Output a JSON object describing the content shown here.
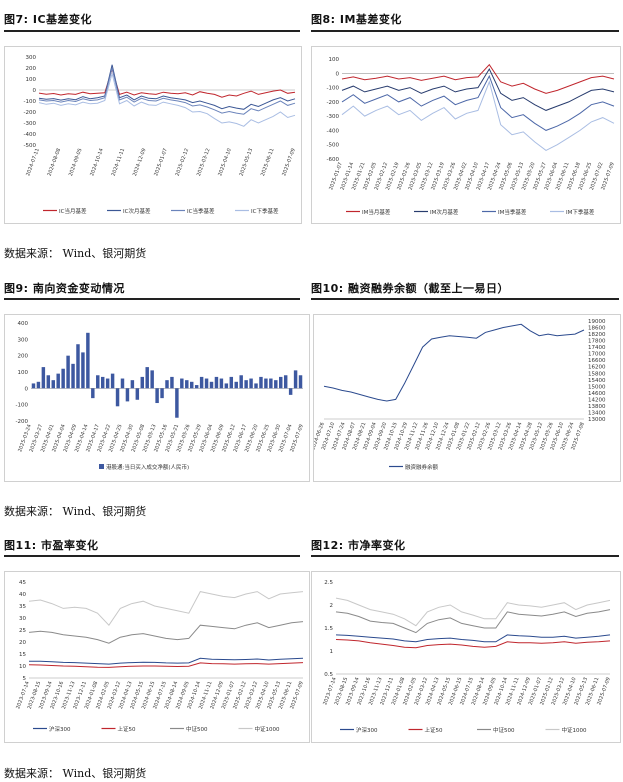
{
  "sources": [
    "数据来源： Wind、银河期货",
    "数据来源： Wind、银河期货",
    "数据来源： Wind、银河期货"
  ],
  "figures": [
    {
      "id": "fig7",
      "title": "图7: IC基差变化"
    },
    {
      "id": "fig8",
      "title": "图8: IM基差变化"
    },
    {
      "id": "fig9",
      "title": "图9: 南向资金变动情况"
    },
    {
      "id": "fig10",
      "title": "图10: 融资融券余额（截至上一易日）"
    },
    {
      "id": "fig11",
      "title": "图11: 市盈率变化"
    },
    {
      "id": "fig12",
      "title": "图12: 市净率变化"
    }
  ],
  "chart_data": [
    {
      "id": "fig7",
      "type": "line",
      "ylim": [
        -500,
        300
      ],
      "yticks": [
        300,
        200,
        100,
        0,
        -100,
        -200,
        -300,
        -400,
        -500
      ],
      "xticks": [
        "2024-07-11",
        "2024-08-08",
        "2024-09-05",
        "2024-10-14",
        "2024-11-11",
        "2024-12-09",
        "2025-01-07",
        "2025-02-12",
        "2025-03-12",
        "2025-04-10",
        "2025-05-13",
        "2025-06-11",
        "2025-07-09"
      ],
      "series": [
        {
          "name": "IC当月基差",
          "color": "#c0262d",
          "values": [
            -28,
            -38,
            -32,
            -45,
            -35,
            -40,
            -20,
            -35,
            -30,
            -25,
            190,
            -40,
            -20,
            -45,
            -25,
            -35,
            -40,
            -20,
            -30,
            -35,
            -25,
            -45,
            -15,
            -30,
            -40,
            -65,
            -45,
            -55,
            -30,
            -10,
            -40,
            -25,
            -10,
            0,
            -30,
            -20
          ]
        },
        {
          "name": "IC次月基差",
          "color": "#3b5795",
          "values": [
            -75,
            -85,
            -78,
            -92,
            -80,
            -88,
            -60,
            -80,
            -70,
            -55,
            230,
            -70,
            -45,
            -90,
            -55,
            -75,
            -80,
            -55,
            -70,
            -80,
            -90,
            -115,
            -100,
            -120,
            -140,
            -170,
            -150,
            -165,
            -175,
            -130,
            -150,
            -120,
            -90,
            -70,
            -100,
            -80
          ]
        },
        {
          "name": "IC当季基差",
          "color": "#6b84bb",
          "values": [
            -90,
            -100,
            -95,
            -110,
            -95,
            -105,
            -80,
            -95,
            -90,
            -70,
            200,
            -90,
            -65,
            -110,
            -75,
            -95,
            -100,
            -75,
            -90,
            -100,
            -115,
            -145,
            -135,
            -155,
            -180,
            -210,
            -195,
            -210,
            -220,
            -170,
            -190,
            -160,
            -130,
            -100,
            -140,
            -120
          ]
        },
        {
          "name": "IC下季基差",
          "color": "#a9bde3",
          "values": [
            -115,
            -130,
            -120,
            -140,
            -125,
            -135,
            -110,
            -125,
            -120,
            -95,
            150,
            -125,
            -95,
            -145,
            -110,
            -135,
            -140,
            -110,
            -125,
            -140,
            -160,
            -200,
            -195,
            -215,
            -260,
            -300,
            -290,
            -305,
            -330,
            -270,
            -300,
            -270,
            -240,
            -200,
            -250,
            -230
          ]
        }
      ]
    },
    {
      "id": "fig8",
      "type": "line",
      "ylim": [
        -600,
        100
      ],
      "yticks": [
        100,
        0,
        -100,
        -200,
        -300,
        -400,
        -500,
        -600
      ],
      "xticks": [
        "2025-01-07",
        "2025-01-14",
        "2025-01-21",
        "2025-02-05",
        "2025-02-12",
        "2025-02-19",
        "2025-02-26",
        "2025-03-05",
        "2025-03-12",
        "2025-03-19",
        "2025-03-26",
        "2025-04-02",
        "2025-04-10",
        "2025-04-17",
        "2025-04-24",
        "2025-05-06",
        "2025-05-13",
        "2025-05-20",
        "2025-05-27",
        "2025-06-04",
        "2025-06-11",
        "2025-06-18",
        "2025-06-25",
        "2025-07-02",
        "2025-07-09"
      ],
      "series": [
        {
          "name": "IM当月基差",
          "color": "#c0262d",
          "values": [
            -40,
            -25,
            -45,
            -35,
            -20,
            -40,
            -30,
            -50,
            -35,
            -20,
            -45,
            -30,
            -25,
            60,
            -60,
            -90,
            -70,
            -110,
            -140,
            -120,
            -90,
            -60,
            -30,
            -20,
            -40
          ]
        },
        {
          "name": "IM次月基差",
          "color": "#283c6e",
          "values": [
            -120,
            -90,
            -130,
            -110,
            -90,
            -120,
            -100,
            -140,
            -110,
            -90,
            -130,
            -110,
            -100,
            30,
            -140,
            -190,
            -170,
            -220,
            -260,
            -230,
            -200,
            -160,
            -120,
            -110,
            -130
          ]
        },
        {
          "name": "IM当季基差",
          "color": "#4d68a8",
          "values": [
            -200,
            -150,
            -210,
            -180,
            -150,
            -200,
            -170,
            -230,
            -190,
            -160,
            -220,
            -190,
            -170,
            -20,
            -240,
            -310,
            -290,
            -350,
            -400,
            -370,
            -330,
            -280,
            -220,
            -200,
            -230
          ]
        },
        {
          "name": "IM下季基差",
          "color": "#a9bde3",
          "values": [
            -290,
            -230,
            -300,
            -260,
            -230,
            -290,
            -260,
            -330,
            -280,
            -240,
            -320,
            -280,
            -260,
            -60,
            -360,
            -430,
            -410,
            -480,
            -540,
            -500,
            -450,
            -400,
            -340,
            -310,
            -350
          ]
        }
      ]
    },
    {
      "id": "fig9",
      "type": "bar",
      "ylim": [
        -200,
        400
      ],
      "yticks": [
        400,
        300,
        200,
        100,
        0,
        -100,
        -200
      ],
      "xticks": [
        "2025-03-24",
        "2025-03-27",
        "2025-04-01",
        "2025-04-04",
        "2025-04-09",
        "2025-04-14",
        "2025-04-17",
        "2025-04-22",
        "2025-04-25",
        "2025-04-30",
        "2025-05-08",
        "2025-05-13",
        "2025-05-16",
        "2025-05-21",
        "2025-05-26",
        "2025-05-29",
        "2025-06-04",
        "2025-06-09",
        "2025-06-12",
        "2025-06-17",
        "2025-06-20",
        "2025-06-25",
        "2025-06-30",
        "2025-07-04",
        "2025-07-09"
      ],
      "series": [
        {
          "name": "港股通:当日买入成交净额(人民币)",
          "color": "#3d58a0",
          "values": [
            30,
            40,
            130,
            80,
            50,
            90,
            120,
            200,
            150,
            270,
            220,
            340,
            -60,
            80,
            70,
            60,
            90,
            -110,
            60,
            -80,
            50,
            -70,
            70,
            130,
            110,
            -90,
            -60,
            50,
            70,
            -180,
            60,
            50,
            40,
            20,
            70,
            60,
            40,
            70,
            60,
            30,
            70,
            40,
            80,
            50,
            60,
            30,
            70,
            60,
            60,
            50,
            70,
            80,
            -40,
            110,
            80
          ]
        }
      ]
    },
    {
      "id": "fig10",
      "type": "line",
      "ylim": [
        13000,
        19000
      ],
      "yticks": [
        19000,
        18600,
        18200,
        17800,
        17400,
        17000,
        16600,
        16200,
        15800,
        15400,
        15000,
        14600,
        14200,
        13800,
        13400,
        13000
      ],
      "xticks": [
        "2024-06-26",
        "2024-07-10",
        "2024-07-24",
        "2024-08-07",
        "2024-08-21",
        "2024-09-04",
        "2024-09-20",
        "2024-10-15",
        "2024-10-29",
        "2024-11-12",
        "2024-11-26",
        "2024-12-10",
        "2024-12-24",
        "2025-01-08",
        "2025-01-22",
        "2025-02-12",
        "2025-02-26",
        "2025-03-12",
        "2025-03-26",
        "2025-04-14",
        "2025-04-28",
        "2025-05-12",
        "2025-05-26",
        "2025-06-10",
        "2025-06-24",
        "2025-07-08"
      ],
      "series": [
        {
          "name": "融资融券余额",
          "color": "#2b4a8e",
          "values": [
            15000,
            14900,
            14750,
            14650,
            14500,
            14350,
            14200,
            14100,
            14200,
            15200,
            16300,
            17400,
            17900,
            18000,
            18100,
            18050,
            18000,
            17950,
            18300,
            18450,
            18600,
            18700,
            18800,
            18400,
            18100,
            18200,
            18100,
            18150,
            18200,
            18450
          ]
        }
      ]
    },
    {
      "id": "fig11",
      "type": "line",
      "ylim": [
        5,
        45
      ],
      "yticks": [
        45,
        40,
        35,
        30,
        25,
        20,
        15,
        10,
        5
      ],
      "xticks": [
        "2023-07-14",
        "2023-08-15",
        "2023-09-14",
        "2023-10-16",
        "2023-11-13",
        "2023-12-11",
        "2024-01-08",
        "2024-02-05",
        "2024-03-12",
        "2024-04-13",
        "2024-05-15",
        "2024-06-15",
        "2024-07-15",
        "2024-08-14",
        "2024-09-05",
        "2024-10-14",
        "2024-11-11",
        "2024-12-09",
        "2025-01-07",
        "2025-02-12",
        "2025-03-12",
        "2025-04-10",
        "2025-05-13",
        "2025-06-11",
        "2025-07-09"
      ],
      "series": [
        {
          "name": "沪深300",
          "color": "#2b4a8e",
          "values": [
            12,
            12,
            11.8,
            11.5,
            11.4,
            11.2,
            11,
            10.8,
            11.2,
            11.4,
            11.6,
            11.5,
            11.3,
            11.2,
            11.3,
            13.2,
            12.8,
            12.7,
            12.6,
            12.7,
            12.9,
            12.5,
            12.8,
            13,
            13.2
          ]
        },
        {
          "name": "上证50",
          "color": "#c0262d",
          "values": [
            10.5,
            10.4,
            10.2,
            10,
            9.9,
            9.7,
            9.5,
            9.4,
            9.7,
            9.9,
            10,
            10,
            9.9,
            9.8,
            9.9,
            11.3,
            11,
            10.9,
            10.8,
            10.9,
            11,
            10.8,
            11,
            11.2,
            11.4
          ]
        },
        {
          "name": "中证500",
          "color": "#8a8a8a",
          "values": [
            24,
            24.5,
            24,
            23,
            22.5,
            22,
            21,
            19.5,
            22,
            23,
            23.5,
            22.5,
            21.5,
            21,
            21.5,
            27,
            26.5,
            26,
            25.5,
            27,
            28,
            26,
            27,
            28,
            28.5
          ]
        },
        {
          "name": "中证1000",
          "color": "#c8c8c8",
          "values": [
            37,
            37.5,
            36,
            34,
            34.5,
            34,
            32,
            27,
            34,
            36,
            37,
            35,
            34,
            33,
            32,
            41,
            40,
            39,
            38.5,
            40,
            41,
            38,
            40,
            40.5,
            41
          ]
        }
      ]
    },
    {
      "id": "fig12",
      "type": "line",
      "ylim": [
        0.5,
        2.5
      ],
      "yticks": [
        2.5,
        2,
        1.5,
        1,
        0.5
      ],
      "xticks": [
        "2023-07-14",
        "2023-08-15",
        "2023-09-14",
        "2023-10-16",
        "2023-11-13",
        "2023-12-11",
        "2024-01-08",
        "2024-02-05",
        "2024-03-12",
        "2024-04-13",
        "2024-05-15",
        "2024-06-15",
        "2024-07-15",
        "2024-08-14",
        "2024-09-05",
        "2024-10-14",
        "2024-11-11",
        "2024-12-09",
        "2025-01-07",
        "2025-02-12",
        "2025-03-12",
        "2025-04-10",
        "2025-05-13",
        "2025-06-11",
        "2025-07-09"
      ],
      "series": [
        {
          "name": "沪深300",
          "color": "#2b4a8e",
          "values": [
            1.35,
            1.34,
            1.32,
            1.3,
            1.28,
            1.26,
            1.22,
            1.2,
            1.25,
            1.27,
            1.28,
            1.25,
            1.23,
            1.2,
            1.2,
            1.35,
            1.33,
            1.32,
            1.3,
            1.3,
            1.32,
            1.28,
            1.3,
            1.32,
            1.35
          ]
        },
        {
          "name": "上证50",
          "color": "#c0262d",
          "values": [
            1.25,
            1.24,
            1.22,
            1.18,
            1.15,
            1.12,
            1.08,
            1.07,
            1.12,
            1.14,
            1.15,
            1.13,
            1.1,
            1.08,
            1.1,
            1.2,
            1.18,
            1.18,
            1.17,
            1.18,
            1.2,
            1.17,
            1.19,
            1.2,
            1.22
          ]
        },
        {
          "name": "中证500",
          "color": "#8a8a8a",
          "values": [
            1.85,
            1.82,
            1.75,
            1.65,
            1.62,
            1.6,
            1.5,
            1.4,
            1.6,
            1.68,
            1.72,
            1.6,
            1.55,
            1.5,
            1.5,
            1.85,
            1.8,
            1.78,
            1.76,
            1.8,
            1.85,
            1.75,
            1.82,
            1.85,
            1.9
          ]
        },
        {
          "name": "中证1000",
          "color": "#c8c8c8",
          "values": [
            2.15,
            2.1,
            2.0,
            1.9,
            1.85,
            1.8,
            1.7,
            1.55,
            1.85,
            1.95,
            2.0,
            1.85,
            1.78,
            1.7,
            1.7,
            2.05,
            2.0,
            1.98,
            1.95,
            2.0,
            2.05,
            1.9,
            2.0,
            2.05,
            2.1
          ]
        }
      ]
    }
  ]
}
